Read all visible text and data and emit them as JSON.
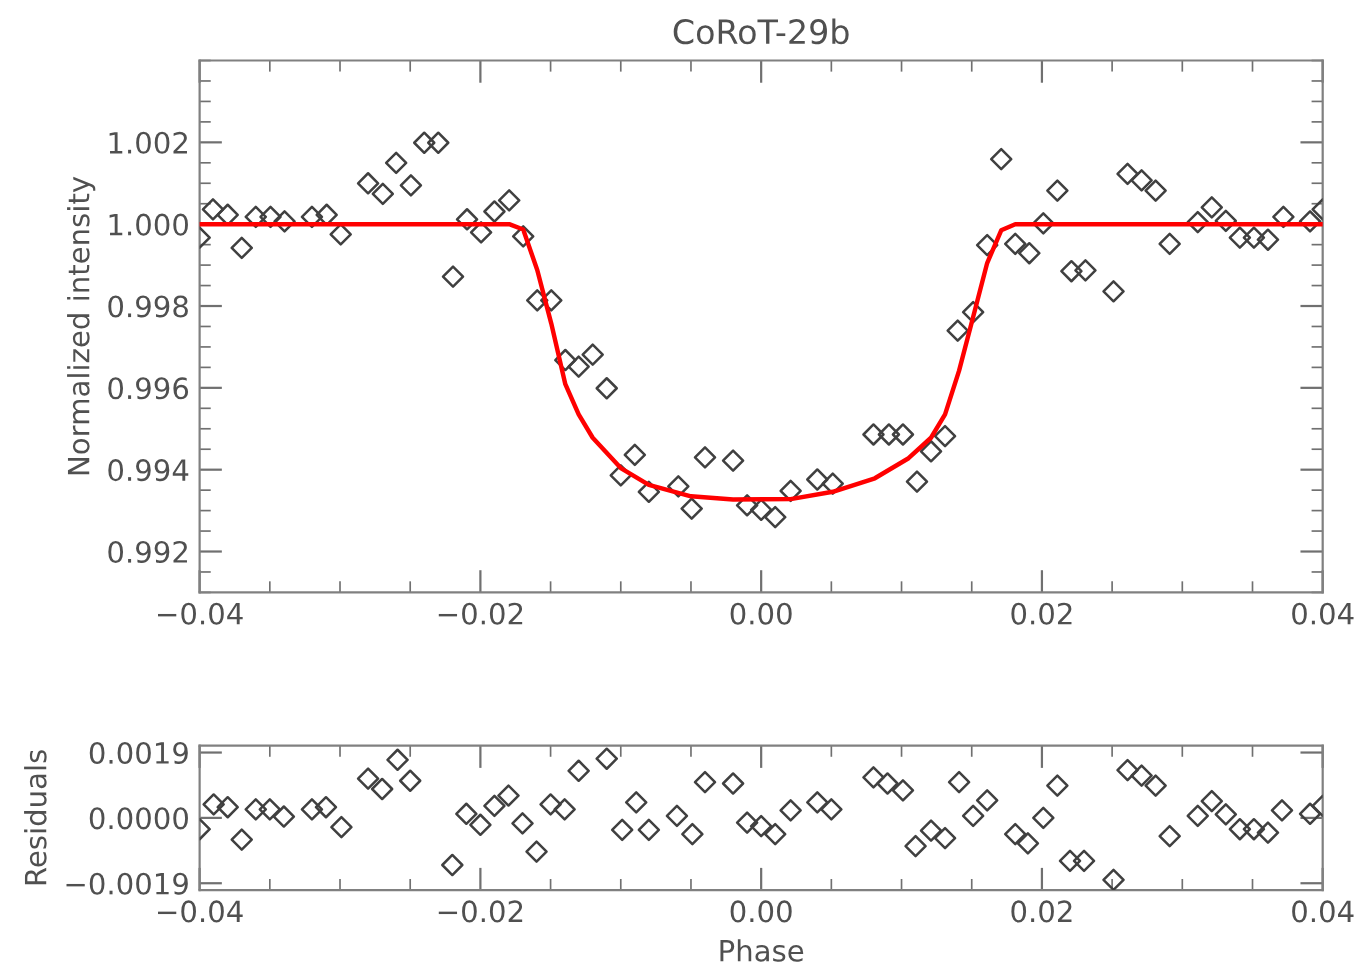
{
  "chart_data": [
    {
      "type": "scatter",
      "title": "CoRoT-29b",
      "ylabel": "Normalized intensity",
      "marker": "diamond",
      "grid": false,
      "legend": false,
      "xlim": [
        -0.04,
        0.04
      ],
      "ylim": [
        0.991,
        1.004
      ],
      "xticks": [
        {
          "value": -0.04,
          "label": "−0.04"
        },
        {
          "value": -0.02,
          "label": "−0.02"
        },
        {
          "value": 0.0,
          "label": "0.00"
        },
        {
          "value": 0.02,
          "label": "0.02"
        },
        {
          "value": 0.04,
          "label": "0.04"
        }
      ],
      "yticks": [
        {
          "value": 0.992,
          "label": "0.992"
        },
        {
          "value": 0.994,
          "label": "0.994"
        },
        {
          "value": 0.996,
          "label": "0.996"
        },
        {
          "value": 0.998,
          "label": "0.998"
        },
        {
          "value": 1.0,
          "label": "1.000"
        },
        {
          "value": 1.002,
          "label": "1.002"
        }
      ],
      "series": [
        {
          "color": "#404040",
          "x": [
            -0.04,
            -0.03905,
            -0.038,
            -0.037,
            -0.036,
            -0.03495,
            -0.03395,
            -0.032,
            -0.03095,
            -0.02995,
            -0.028,
            -0.02695,
            -0.026,
            -0.02495,
            -0.024,
            -0.023,
            -0.02195,
            -0.02095,
            -0.01995,
            -0.019,
            -0.01795,
            -0.01695,
            -0.01595,
            -0.01495,
            -0.01395,
            -0.013,
            -0.012,
            -0.011,
            -0.01,
            -0.009,
            -0.008,
            -0.0059,
            -0.00495,
            -0.004,
            -0.002,
            -0.001,
            0.0,
            0.001,
            0.0021,
            0.004,
            0.0051,
            0.008,
            0.0091,
            0.0101,
            0.0111,
            0.0121,
            0.0131,
            0.014,
            0.0151,
            0.0161,
            0.0171,
            0.0181,
            0.0191,
            0.0201,
            0.0211,
            0.0221,
            0.0231,
            0.0251,
            0.0261,
            0.0271,
            0.0281,
            0.0291,
            0.0311,
            0.0321,
            0.0331,
            0.0341,
            0.0351,
            0.0361,
            0.0372,
            0.0391,
            0.04
          ],
          "values": [
            0.99967,
            1.00036,
            1.00023,
            0.99942,
            1.00018,
            1.00018,
            1.00007,
            1.00018,
            1.00023,
            0.99975,
            1.001,
            1.00074,
            1.0015,
            1.00095,
            1.00199,
            1.00199,
            0.99872,
            1.00012,
            0.9998,
            1.00031,
            1.00058,
            0.9997,
            0.99814,
            0.99814,
            0.99668,
            0.99652,
            0.99681,
            0.99599,
            0.99386,
            0.99436,
            0.99346,
            0.99359,
            0.99305,
            0.9943,
            0.99422,
            0.99313,
            0.99302,
            0.99284,
            0.99348,
            0.99376,
            0.99366,
            0.99486,
            0.99486,
            0.99486,
            0.99371,
            0.99445,
            0.99482,
            0.9974,
            0.99785,
            0.99949,
            1.00159,
            0.99952,
            0.99929,
            1.00002,
            1.00082,
            0.99885,
            0.99887,
            0.99836,
            1.00123,
            1.00107,
            1.00082,
            0.99952,
            1.00005,
            1.00041,
            1.00008,
            0.99967,
            0.99967,
            0.99962,
            1.00018,
            1.00007,
            1.00036
          ]
        },
        {
          "type": "line",
          "color": "#ff0000",
          "marker": "none",
          "x": [
            -0.04,
            -0.01795,
            -0.01695,
            -0.01595,
            -0.01495,
            -0.01395,
            -0.013,
            -0.012,
            -0.01,
            -0.008,
            -0.005,
            -0.002,
            0.0021,
            0.0051,
            0.0081,
            0.0105,
            0.0121,
            0.0131,
            0.0141,
            0.0151,
            0.0161,
            0.0171,
            0.0181,
            0.04
          ],
          "values": [
            1.0,
            1.0,
            0.99987,
            0.99888,
            0.99757,
            0.99609,
            0.99535,
            0.99478,
            0.99404,
            0.99363,
            0.99335,
            0.99327,
            0.99328,
            0.99346,
            0.99379,
            0.99428,
            0.99478,
            0.99535,
            0.99642,
            0.99773,
            0.99905,
            0.99985,
            1.0,
            1.0
          ]
        }
      ]
    },
    {
      "type": "scatter",
      "xlabel": "Phase",
      "ylabel": "Residuals",
      "marker": "diamond",
      "grid": false,
      "legend": false,
      "xlim": [
        -0.04,
        0.04
      ],
      "ylim": [
        -0.0021,
        0.0021
      ],
      "xticks": [
        {
          "value": -0.04,
          "label": "−0.04"
        },
        {
          "value": -0.02,
          "label": "−0.02"
        },
        {
          "value": 0.0,
          "label": "0.00"
        },
        {
          "value": 0.02,
          "label": "0.02"
        },
        {
          "value": 0.04,
          "label": "0.04"
        }
      ],
      "yticks": [
        {
          "value": -0.0019,
          "label": "−0.0019"
        },
        {
          "value": 0.0,
          "label": "0.0000"
        },
        {
          "value": 0.0019,
          "label": "0.0019"
        }
      ],
      "series": [
        {
          "color": "#404040",
          "x": [
            -0.04,
            -0.039,
            -0.038,
            -0.037,
            -0.036,
            -0.035,
            -0.034,
            -0.032,
            -0.031,
            -0.0299,
            -0.028,
            -0.027,
            -0.0259,
            -0.025,
            -0.024,
            -0.023,
            -0.022,
            -0.021,
            -0.02,
            -0.019,
            -0.018,
            -0.017,
            -0.016,
            -0.015,
            -0.014,
            -0.013,
            -0.012,
            -0.011,
            -0.0099,
            -0.0089,
            -0.008,
            -0.006,
            -0.0049,
            -0.004,
            -0.002,
            -0.001,
            0.0,
            0.001,
            0.0021,
            0.004,
            0.005,
            0.008,
            0.009,
            0.0101,
            0.011,
            0.0121,
            0.0131,
            0.0141,
            0.0151,
            0.0161,
            0.0181,
            0.019,
            0.0201,
            0.0211,
            0.022,
            0.023,
            0.0251,
            0.0261,
            0.0271,
            0.0281,
            0.0291,
            0.0311,
            0.0321,
            0.0331,
            0.0341,
            0.0351,
            0.0361,
            0.0371,
            0.0391,
            0.04
          ],
          "values": [
            -0.00033,
            0.00039,
            0.00031,
            -0.00063,
            0.00025,
            0.00025,
            4e-05,
            0.00025,
            0.00031,
            -0.00027,
            0.00114,
            0.00084,
            0.00169,
            0.00108,
            null,
            null,
            -0.00137,
            0.00012,
            -0.0002,
            0.00035,
            0.00065,
            -0.00016,
            -0.00098,
            0.00039,
            0.00025,
            0.00137,
            null,
            0.00172,
            -0.00035,
            0.00045,
            -0.00035,
            6e-05,
            -0.00047,
            0.00104,
            0.001,
            -0.00014,
            -0.00024,
            -0.00047,
            0.00022,
            0.00045,
            0.00025,
            0.00118,
            0.001,
            0.0008,
            -0.00082,
            -0.00037,
            -0.00059,
            0.00104,
            6e-05,
            0.00051,
            -0.00047,
            -0.00074,
            0.0,
            0.00094,
            -0.00125,
            -0.00125,
            -0.0018,
            0.00139,
            0.00123,
            0.00094,
            -0.00053,
            6e-05,
            0.00049,
            0.0001,
            -0.00033,
            -0.00033,
            -0.00043,
            0.00022,
            0.00012,
            0.00035
          ]
        }
      ]
    }
  ]
}
